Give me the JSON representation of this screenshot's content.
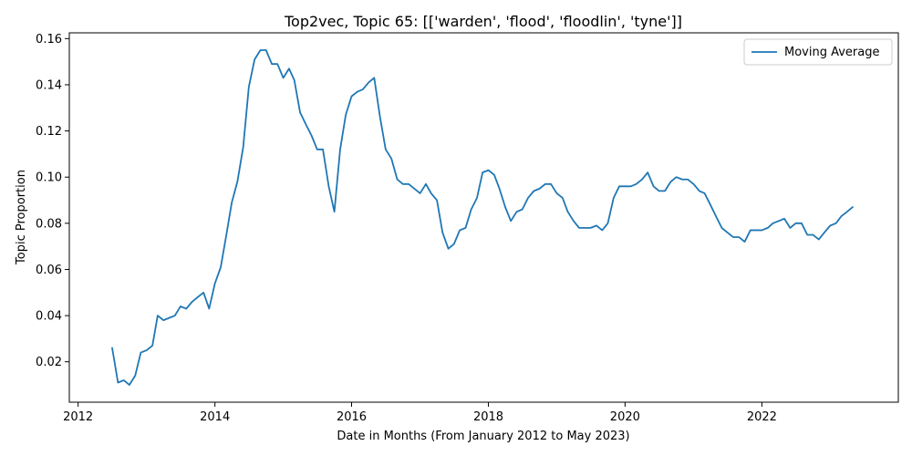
{
  "chart_data": {
    "type": "line",
    "title": "Top2vec, Topic 65: [['warden', 'flood', 'floodlin', 'tyne']]",
    "xlabel": "Date in Months (From January 2012 to May 2023)",
    "ylabel": "Topic Proportion",
    "xlim": [
      "2011-11-15",
      "2023-12-31"
    ],
    "ylim": [
      0.0025,
      0.1625
    ],
    "x_ticks": [
      "2012-01-01",
      "2014-01-01",
      "2016-01-01",
      "2018-01-01",
      "2020-01-01",
      "2022-01-01"
    ],
    "x_tick_labels": [
      "2012",
      "2014",
      "2016",
      "2018",
      "2020",
      "2022"
    ],
    "y_ticks": [
      0.02,
      0.04,
      0.06,
      0.08,
      0.1,
      0.12,
      0.14,
      0.16
    ],
    "y_tick_labels": [
      "0.02",
      "0.04",
      "0.06",
      "0.08",
      "0.10",
      "0.12",
      "0.14",
      "0.16"
    ],
    "grid": false,
    "legend": {
      "position": "top-right",
      "entries": [
        "Moving Average"
      ]
    },
    "series": [
      {
        "name": "Moving Average",
        "color": "#1f77b4",
        "x": [
          "2012-07",
          "2012-08",
          "2012-09",
          "2012-10",
          "2012-11",
          "2012-12",
          "2013-01",
          "2013-02",
          "2013-03",
          "2013-04",
          "2013-05",
          "2013-06",
          "2013-07",
          "2013-08",
          "2013-09",
          "2013-10",
          "2013-11",
          "2013-12",
          "2014-01",
          "2014-02",
          "2014-03",
          "2014-04",
          "2014-05",
          "2014-06",
          "2014-07",
          "2014-08",
          "2014-09",
          "2014-10",
          "2014-11",
          "2014-12",
          "2015-01",
          "2015-02",
          "2015-03",
          "2015-04",
          "2015-05",
          "2015-06",
          "2015-07",
          "2015-08",
          "2015-09",
          "2015-10",
          "2015-11",
          "2015-12",
          "2016-01",
          "2016-02",
          "2016-03",
          "2016-04",
          "2016-05",
          "2016-06",
          "2016-07",
          "2016-08",
          "2016-09",
          "2016-10",
          "2016-11",
          "2016-12",
          "2017-01",
          "2017-02",
          "2017-03",
          "2017-04",
          "2017-05",
          "2017-06",
          "2017-07",
          "2017-08",
          "2017-09",
          "2017-10",
          "2017-11",
          "2017-12",
          "2018-01",
          "2018-02",
          "2018-03",
          "2018-04",
          "2018-05",
          "2018-06",
          "2018-07",
          "2018-08",
          "2018-09",
          "2018-10",
          "2018-11",
          "2018-12",
          "2019-01",
          "2019-02",
          "2019-03",
          "2019-04",
          "2019-05",
          "2019-06",
          "2019-07",
          "2019-08",
          "2019-09",
          "2019-10",
          "2019-11",
          "2019-12",
          "2020-01",
          "2020-02",
          "2020-03",
          "2020-04",
          "2020-05",
          "2020-06",
          "2020-07",
          "2020-08",
          "2020-09",
          "2020-10",
          "2020-11",
          "2020-12",
          "2021-01",
          "2021-02",
          "2021-03",
          "2021-04",
          "2021-05",
          "2021-06",
          "2021-07",
          "2021-08",
          "2021-09",
          "2021-10",
          "2021-11",
          "2021-12",
          "2022-01",
          "2022-02",
          "2022-03",
          "2022-04",
          "2022-05",
          "2022-06",
          "2022-07",
          "2022-08",
          "2022-09",
          "2022-10",
          "2022-11",
          "2022-12",
          "2023-01",
          "2023-02",
          "2023-03",
          "2023-04",
          "2023-05"
        ],
        "y": [
          0.026,
          0.011,
          0.012,
          0.01,
          0.014,
          0.024,
          0.025,
          0.027,
          0.04,
          0.038,
          0.039,
          0.04,
          0.044,
          0.043,
          0.046,
          0.048,
          0.05,
          0.043,
          0.054,
          0.061,
          0.074,
          0.089,
          0.098,
          0.113,
          0.139,
          0.151,
          0.155,
          0.155,
          0.149,
          0.149,
          0.143,
          0.147,
          0.142,
          0.128,
          0.123,
          0.118,
          0.112,
          0.112,
          0.096,
          0.085,
          0.112,
          0.127,
          0.135,
          0.137,
          0.138,
          0.141,
          0.143,
          0.126,
          0.112,
          0.108,
          0.099,
          0.097,
          0.097,
          0.095,
          0.093,
          0.097,
          0.093,
          0.09,
          0.076,
          0.069,
          0.071,
          0.077,
          0.078,
          0.086,
          0.091,
          0.102,
          0.103,
          0.101,
          0.095,
          0.087,
          0.081,
          0.085,
          0.086,
          0.091,
          0.094,
          0.095,
          0.097,
          0.097,
          0.093,
          0.091,
          0.085,
          0.081,
          0.078,
          0.078,
          0.078,
          0.079,
          0.077,
          0.08,
          0.091,
          0.096,
          0.096,
          0.096,
          0.097,
          0.099,
          0.102,
          0.096,
          0.094,
          0.094,
          0.098,
          0.1,
          0.099,
          0.099,
          0.097,
          0.094,
          0.093,
          0.088,
          0.083,
          0.078,
          0.076,
          0.074,
          0.074,
          0.072,
          0.077,
          0.077,
          0.077,
          0.078,
          0.08,
          0.081,
          0.082,
          0.078,
          0.08,
          0.08,
          0.075,
          0.075,
          0.073,
          0.076,
          0.079,
          0.08,
          0.083,
          0.085,
          0.087
        ]
      }
    ]
  }
}
